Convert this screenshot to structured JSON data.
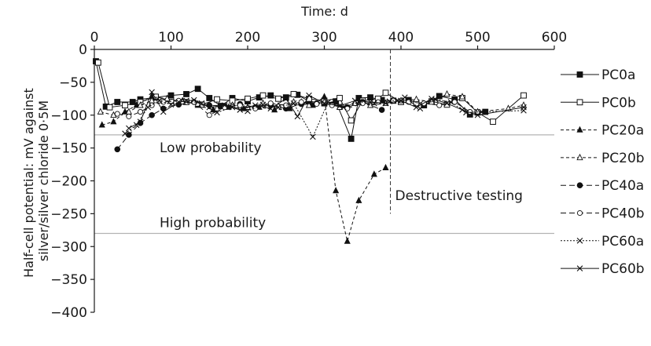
{
  "chart_data": {
    "type": "line",
    "xlabel": "Time: d",
    "ylabel_lines": [
      "Half-cell potential: mV against",
      "silver/silver chloride 0·5M"
    ],
    "xlim": [
      0,
      600
    ],
    "ylim": [
      -400,
      0
    ],
    "x_ticks": [
      0,
      100,
      200,
      300,
      400,
      500,
      600
    ],
    "y_ticks": [
      0,
      -50,
      -100,
      -150,
      -200,
      -250,
      -300,
      -350,
      -400
    ],
    "y_tick_labels": [
      "0",
      "−50",
      "−100",
      "−150",
      "−200",
      "−250",
      "−300",
      "−350",
      "−400"
    ],
    "grid": false,
    "legend_position": "right",
    "reference_lines": [
      {
        "label": "Low probability",
        "y": -130,
        "color": "#b3b3b3"
      },
      {
        "label": "High probability",
        "y": -280,
        "color": "#b3b3b3"
      }
    ],
    "vertical_marker": {
      "label": "Destructive testing",
      "x": 378,
      "y_range": [
        0,
        -250
      ]
    },
    "series": [
      {
        "name": "PC0a",
        "dash": "solid",
        "marker": "square-filled",
        "x": [
          2,
          15,
          30,
          50,
          60,
          80,
          100,
          120,
          135,
          150,
          165,
          180,
          200,
          215,
          230,
          250,
          265,
          280,
          300,
          315,
          335,
          345,
          360,
          375,
          390,
          410,
          430,
          450,
          470,
          490,
          510
        ],
        "y": [
          -18,
          -87,
          -80,
          -80,
          -76,
          -73,
          -70,
          -68,
          -60,
          -74,
          -86,
          -74,
          -79,
          -73,
          -70,
          -73,
          -69,
          -79,
          -82,
          -79,
          -136,
          -74,
          -73,
          -77,
          -78,
          -77,
          -85,
          -71,
          -76,
          -99,
          -95
        ]
      },
      {
        "name": "PC0b",
        "dash": "solid",
        "marker": "square-open",
        "x": [
          5,
          20,
          40,
          60,
          80,
          100,
          120,
          140,
          160,
          180,
          200,
          220,
          240,
          260,
          280,
          300,
          320,
          335,
          350,
          370,
          380,
          400,
          420,
          440,
          460,
          480,
          500,
          520,
          560
        ],
        "y": [
          -20,
          -88,
          -85,
          -80,
          -72,
          -78,
          -80,
          -84,
          -76,
          -78,
          -75,
          -70,
          -75,
          -68,
          -75,
          -78,
          -74,
          -108,
          -78,
          -75,
          -66,
          -80,
          -82,
          -79,
          -84,
          -74,
          -96,
          -110,
          -70
        ]
      },
      {
        "name": "PC20a",
        "dash": "4,3",
        "marker": "triangle-filled",
        "x": [
          10,
          25,
          40,
          55,
          75,
          95,
          115,
          135,
          155,
          175,
          195,
          215,
          235,
          255,
          270,
          285,
          300,
          315,
          330,
          345,
          365,
          380
        ],
        "y": [
          -115,
          -110,
          -95,
          -85,
          -72,
          -75,
          -78,
          -85,
          -92,
          -88,
          -90,
          -88,
          -92,
          -90,
          -80,
          -85,
          -72,
          -215,
          -292,
          -230,
          -190,
          -180
        ]
      },
      {
        "name": "PC20b",
        "dash": "4,3",
        "marker": "triangle-open",
        "x": [
          8,
          25,
          45,
          60,
          75,
          95,
          115,
          135,
          160,
          180,
          200,
          220,
          240,
          260,
          280,
          300,
          320,
          340,
          360,
          380,
          400,
          420,
          440,
          460,
          480,
          500,
          540,
          560
        ],
        "y": [
          -95,
          -100,
          -95,
          -85,
          -78,
          -75,
          -80,
          -83,
          -90,
          -85,
          -88,
          -82,
          -86,
          -80,
          -85,
          -80,
          -88,
          -82,
          -85,
          -82,
          -78,
          -76,
          -80,
          -68,
          -72,
          -95,
          -90,
          -85
        ]
      },
      {
        "name": "PC40a",
        "dash": "7,4",
        "marker": "circle-filled",
        "x": [
          30,
          45,
          60,
          75,
          90,
          110,
          130,
          150,
          170,
          190,
          210,
          230,
          250,
          270,
          290,
          310,
          330,
          350,
          375
        ],
        "y": [
          -152,
          -130,
          -112,
          -100,
          -90,
          -84,
          -80,
          -85,
          -86,
          -83,
          -88,
          -85,
          -90,
          -83,
          -82,
          -84,
          -88,
          -80,
          -92
        ]
      },
      {
        "name": "PC40b",
        "dash": "7,4",
        "marker": "circle-open",
        "x": [
          30,
          45,
          60,
          75,
          90,
          110,
          130,
          150,
          170,
          190,
          210,
          230,
          250,
          270,
          290,
          310,
          330,
          350,
          370,
          390,
          410,
          430,
          450,
          470,
          490
        ],
        "y": [
          -98,
          -102,
          -95,
          -85,
          -80,
          -78,
          -80,
          -100,
          -88,
          -85,
          -90,
          -82,
          -85,
          -80,
          -83,
          -85,
          -90,
          -82,
          -80,
          -78,
          -80,
          -82,
          -85,
          -80,
          -95
        ]
      },
      {
        "name": "PC60a",
        "dash": "2,2",
        "marker": "cross",
        "x": [
          40,
          55,
          70,
          85,
          100,
          120,
          140,
          160,
          180,
          200,
          220,
          240,
          260,
          285,
          305,
          325,
          345,
          365,
          385,
          405,
          425,
          445,
          465,
          485,
          505,
          560
        ],
        "y": [
          -128,
          -115,
          -88,
          -78,
          -84,
          -78,
          -82,
          -96,
          -88,
          -94,
          -84,
          -88,
          -82,
          -133,
          -80,
          -88,
          -80,
          -82,
          -79,
          -73,
          -90,
          -76,
          -80,
          -96,
          -95,
          -93
        ]
      },
      {
        "name": "PC60b",
        "dash": "solid",
        "marker": "cross",
        "x": [
          45,
          60,
          75,
          90,
          110,
          130,
          150,
          170,
          190,
          210,
          230,
          250,
          265,
          280,
          300,
          320,
          340,
          360,
          380,
          400,
          420,
          440,
          460,
          480,
          500,
          560
        ],
        "y": [
          -120,
          -110,
          -65,
          -95,
          -80,
          -77,
          -88,
          -85,
          -92,
          -85,
          -90,
          -75,
          -102,
          -70,
          -82,
          -86,
          -78,
          -80,
          -82,
          -78,
          -88,
          -75,
          -82,
          -92,
          -100,
          -88
        ]
      }
    ]
  }
}
